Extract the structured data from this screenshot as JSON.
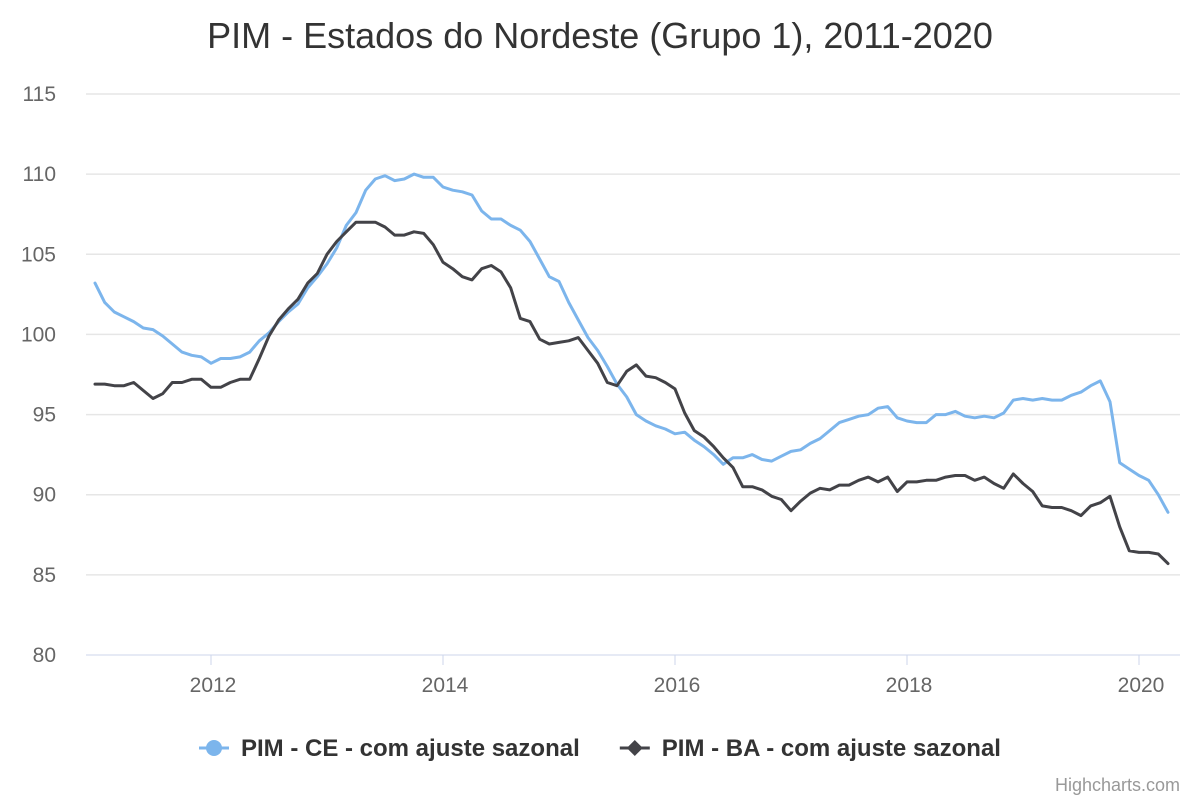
{
  "chart_data": {
    "type": "line",
    "title": "PIM - Estados do Nordeste (Grupo 1), 2011-2020",
    "xlabel": "",
    "ylabel": "",
    "x_start": "2011-01",
    "x_end": "2020-04",
    "xticks": [
      "2012",
      "2014",
      "2016",
      "2018",
      "2020"
    ],
    "ylim": [
      80,
      115
    ],
    "yticks": [
      80,
      85,
      90,
      95,
      100,
      105,
      110,
      115
    ],
    "grid": true,
    "legend_position": "bottom-center",
    "series": [
      {
        "name": "PIM - CE - com ajuste sazonal",
        "color": "#7cb5ec",
        "marker": "circle",
        "values": [
          103.2,
          102.0,
          101.4,
          101.1,
          100.8,
          100.4,
          100.3,
          99.9,
          99.4,
          98.9,
          98.7,
          98.6,
          98.2,
          98.5,
          98.5,
          98.6,
          98.9,
          99.6,
          100.1,
          100.8,
          101.4,
          101.9,
          102.9,
          103.6,
          104.4,
          105.4,
          106.8,
          107.6,
          109.0,
          109.7,
          109.9,
          109.6,
          109.7,
          110.0,
          109.8,
          109.8,
          109.2,
          109.0,
          108.9,
          108.7,
          107.7,
          107.2,
          107.2,
          106.8,
          106.5,
          105.8,
          104.7,
          103.6,
          103.3,
          102.0,
          100.9,
          99.8,
          99.0,
          98.0,
          96.9,
          96.1,
          95.0,
          94.6,
          94.3,
          94.1,
          93.8,
          93.9,
          93.4,
          93.0,
          92.5,
          91.9,
          92.3,
          92.3,
          92.5,
          92.2,
          92.1,
          92.4,
          92.7,
          92.8,
          93.2,
          93.5,
          94.0,
          94.5,
          94.7,
          94.9,
          95.0,
          95.4,
          95.5,
          94.8,
          94.6,
          94.5,
          94.5,
          95.0,
          95.0,
          95.2,
          94.9,
          94.8,
          94.9,
          94.8,
          95.1,
          95.9,
          96.0,
          95.9,
          96.0,
          95.9,
          95.9,
          96.2,
          96.4,
          96.8,
          97.1,
          95.8,
          92.0,
          91.6,
          91.2,
          90.9,
          90.0,
          88.9
        ]
      },
      {
        "name": "PIM - BA - com ajuste sazonal",
        "color": "#434348",
        "marker": "diamond",
        "values": [
          96.9,
          96.9,
          96.8,
          96.8,
          97.0,
          96.5,
          96.0,
          96.3,
          97.0,
          97.0,
          97.2,
          97.2,
          96.7,
          96.7,
          97.0,
          97.2,
          97.2,
          98.5,
          99.9,
          100.9,
          101.6,
          102.2,
          103.2,
          103.8,
          105.0,
          105.8,
          106.4,
          107.0,
          107.0,
          107.0,
          106.7,
          106.2,
          106.2,
          106.4,
          106.3,
          105.6,
          104.5,
          104.1,
          103.6,
          103.4,
          104.1,
          104.3,
          103.9,
          102.9,
          101.0,
          100.8,
          99.7,
          99.4,
          99.5,
          99.6,
          99.8,
          99.0,
          98.2,
          97.0,
          96.8,
          97.7,
          98.1,
          97.4,
          97.3,
          97.0,
          96.6,
          95.1,
          94.0,
          93.6,
          93.0,
          92.3,
          91.7,
          90.5,
          90.5,
          90.3,
          89.9,
          89.7,
          89.0,
          89.6,
          90.1,
          90.4,
          90.3,
          90.6,
          90.6,
          90.9,
          91.1,
          90.8,
          91.1,
          90.2,
          90.8,
          90.8,
          90.9,
          90.9,
          91.1,
          91.2,
          91.2,
          90.9,
          91.1,
          90.7,
          90.4,
          91.3,
          90.7,
          90.2,
          89.3,
          89.2,
          89.2,
          89.0,
          88.7,
          89.3,
          89.5,
          89.9,
          88.0,
          86.5,
          86.4,
          86.4,
          86.3,
          85.7
        ]
      }
    ]
  },
  "credits": "Highcharts.com"
}
